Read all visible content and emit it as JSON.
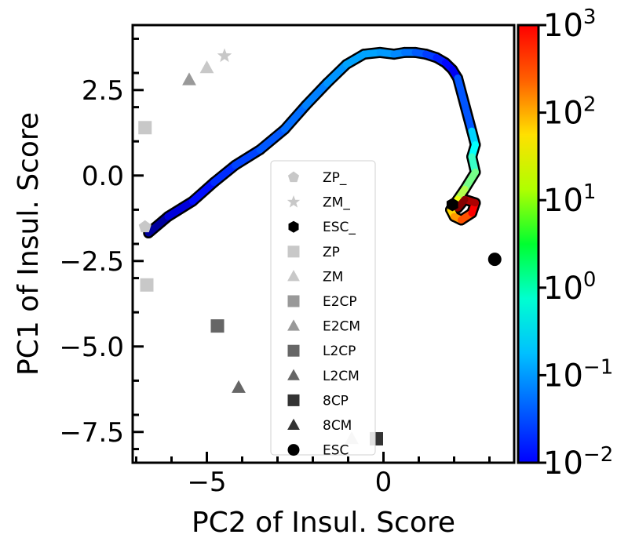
{
  "chart_data": {
    "type": "scatter",
    "xlabel": "PC2 of Insul. Score",
    "ylabel": "PC1 of Insul. Score",
    "xlim": [
      -7.1,
      3.7
    ],
    "ylim": [
      -8.4,
      4.4
    ],
    "x_ticks": [
      {
        "value": -5,
        "label": "−5"
      },
      {
        "value": 0,
        "label": "0"
      }
    ],
    "y_ticks": [
      {
        "value": 2.5,
        "label": "2.5"
      },
      {
        "value": 0.0,
        "label": "0.0"
      },
      {
        "value": -2.5,
        "label": "−2.5"
      },
      {
        "value": -5.0,
        "label": "−5.0"
      },
      {
        "value": -7.5,
        "label": "−7.5"
      }
    ],
    "legend_position": "center",
    "series": [
      {
        "name": "ZP_",
        "marker": "pentagon",
        "color": "#c8c8c8",
        "points": [
          [
            -6.75,
            -1.5
          ]
        ]
      },
      {
        "name": "ZM_",
        "marker": "star",
        "color": "#c8c8c8",
        "points": [
          [
            -4.5,
            3.5
          ]
        ]
      },
      {
        "name": "ESC_",
        "marker": "hexagon",
        "color": "#000000",
        "points": [
          [
            1.95,
            -0.85
          ]
        ]
      },
      {
        "name": "ZP",
        "marker": "square",
        "color": "#c8c8c8",
        "points": [
          [
            -6.75,
            1.4
          ],
          [
            -6.7,
            -3.2
          ]
        ]
      },
      {
        "name": "ZM",
        "marker": "triangle",
        "color": "#c8c8c8",
        "points": [
          [
            -5.0,
            3.15
          ],
          [
            -0.9,
            -7.7
          ]
        ]
      },
      {
        "name": "E2CP",
        "marker": "square",
        "color": "#999999",
        "points": []
      },
      {
        "name": "E2CM",
        "marker": "triangle",
        "color": "#999999",
        "points": [
          [
            -5.5,
            2.8
          ]
        ]
      },
      {
        "name": "L2CP",
        "marker": "square",
        "color": "#666666",
        "points": [
          [
            -4.7,
            -4.4
          ]
        ]
      },
      {
        "name": "L2CM",
        "marker": "triangle",
        "color": "#666666",
        "points": [
          [
            -4.1,
            -6.2
          ]
        ]
      },
      {
        "name": "8CP",
        "marker": "square",
        "color": "#333333",
        "points": [
          [
            -0.2,
            -7.7
          ]
        ]
      },
      {
        "name": "8CM",
        "marker": "triangle",
        "color": "#333333",
        "points": []
      },
      {
        "name": "ESC",
        "marker": "circle",
        "color": "#000000",
        "points": [
          [
            3.15,
            -2.45
          ]
        ]
      }
    ],
    "trajectory": {
      "colormap": "jet",
      "color_scale": "log",
      "color_range": [
        0.01,
        1000
      ],
      "points": [
        {
          "x": -6.65,
          "y": -1.68,
          "t": 0.01
        },
        {
          "x": -6.1,
          "y": -1.2,
          "t": 0.02
        },
        {
          "x": -5.4,
          "y": -0.75,
          "t": 0.04
        },
        {
          "x": -4.8,
          "y": -0.2,
          "t": 0.06
        },
        {
          "x": -4.2,
          "y": 0.3,
          "t": 0.08
        },
        {
          "x": -3.5,
          "y": 0.75,
          "t": 0.1
        },
        {
          "x": -2.8,
          "y": 1.35,
          "t": 0.13
        },
        {
          "x": -2.2,
          "y": 2.05,
          "t": 0.16
        },
        {
          "x": -1.6,
          "y": 2.7,
          "t": 0.2
        },
        {
          "x": -1.05,
          "y": 3.25,
          "t": 0.25
        },
        {
          "x": -0.55,
          "y": 3.55,
          "t": 0.28
        },
        {
          "x": -0.1,
          "y": 3.6,
          "t": 0.26
        },
        {
          "x": 0.3,
          "y": 3.55,
          "t": 0.22
        },
        {
          "x": 0.6,
          "y": 3.6,
          "t": 0.18
        },
        {
          "x": 0.9,
          "y": 3.6,
          "t": 0.14
        },
        {
          "x": 1.2,
          "y": 3.55,
          "t": 0.1
        },
        {
          "x": 1.5,
          "y": 3.45,
          "t": 0.07
        },
        {
          "x": 1.75,
          "y": 3.3,
          "t": 0.05
        },
        {
          "x": 1.95,
          "y": 3.1,
          "t": 0.04
        },
        {
          "x": 2.1,
          "y": 2.85,
          "t": 0.035
        },
        {
          "x": 2.5,
          "y": 1.3,
          "t": 0.35
        },
        {
          "x": 2.6,
          "y": 0.9,
          "t": 0.6
        },
        {
          "x": 2.5,
          "y": 0.55,
          "t": 1.0
        },
        {
          "x": 2.6,
          "y": 0.1,
          "t": 2.0
        },
        {
          "x": 2.3,
          "y": -0.4,
          "t": 4.0
        },
        {
          "x": 2.1,
          "y": -0.7,
          "t": 8.0
        },
        {
          "x": 1.9,
          "y": -1.0,
          "t": 15.0
        },
        {
          "x": 2.0,
          "y": -1.2,
          "t": 30.0
        },
        {
          "x": 2.2,
          "y": -1.3,
          "t": 60.0
        },
        {
          "x": 2.5,
          "y": -1.1,
          "t": 150.0
        },
        {
          "x": 2.6,
          "y": -0.8,
          "t": 400.0
        },
        {
          "x": 2.3,
          "y": -0.7,
          "t": 900.0
        },
        {
          "x": 2.1,
          "y": -0.95,
          "t": 1000.0
        }
      ]
    },
    "colorbar": {
      "label_base": "10",
      "ticks": [
        {
          "exp": "3",
          "value": 1000
        },
        {
          "exp": "2",
          "value": 100
        },
        {
          "exp": "1",
          "value": 10
        },
        {
          "exp": "0",
          "value": 1
        },
        {
          "exp": "−1",
          "value": 0.1
        },
        {
          "exp": "−2",
          "value": 0.01
        }
      ]
    }
  }
}
